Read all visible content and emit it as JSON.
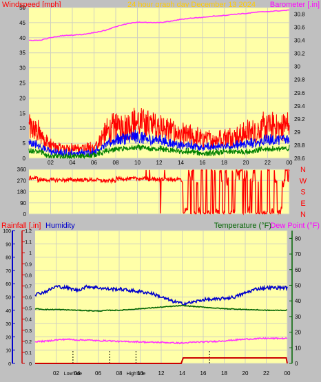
{
  "header": {
    "left_title": "Windspeed [mph]",
    "center_title": "24 hour graph day   December 13 2024",
    "right_title": "Barometer [.in]"
  },
  "colors": {
    "background": "#c0c0c0",
    "plot_bg": "#ffffa8",
    "grid": "#d0d0c0",
    "wind_gust": "#ff0000",
    "wind_avg": "#0000ff",
    "wind_min": "#008000",
    "barometer": "#ff33ff",
    "direction": "#ff0000",
    "rain": "#cc0000",
    "humidity": "#0000cc",
    "temperature": "#006400",
    "dew_point": "#ff33ff",
    "title_red": "#ff0000",
    "title_orange": "#ffcc00",
    "title_magenta": "#ff00ff",
    "axis_text": "#000000"
  },
  "chart_data": [
    {
      "type": "line",
      "name": "wind-barometer",
      "x_ticks": [
        "02",
        "04",
        "06",
        "08",
        "10",
        "12",
        "14",
        "16",
        "18",
        "20",
        "22",
        "00"
      ],
      "wind_axis": [
        0,
        5,
        10,
        15,
        20,
        25,
        30,
        35,
        40,
        45,
        50
      ],
      "baro_axis": [
        "28.6",
        "28.8",
        "29",
        "29.2",
        "29.4",
        "29.6",
        "29.8",
        "30",
        "30.2",
        "30.4",
        "30.6",
        "30.8"
      ],
      "baro_key": [
        [
          0,
          30.4
        ],
        [
          1,
          30.4
        ],
        [
          2,
          30.44
        ],
        [
          3,
          30.47
        ],
        [
          4,
          30.48
        ],
        [
          5,
          30.49
        ],
        [
          6,
          30.52
        ],
        [
          7,
          30.55
        ],
        [
          8,
          30.61
        ],
        [
          9,
          30.65
        ],
        [
          10,
          30.68
        ],
        [
          11,
          30.67
        ],
        [
          12,
          30.67
        ],
        [
          13,
          30.69
        ],
        [
          14,
          30.72
        ],
        [
          15,
          30.74
        ],
        [
          16,
          30.75
        ],
        [
          17,
          30.77
        ],
        [
          18,
          30.78
        ],
        [
          19,
          30.8
        ],
        [
          20,
          30.81
        ],
        [
          21,
          30.83
        ],
        [
          22,
          30.84
        ],
        [
          23,
          30.85
        ],
        [
          24,
          30.86
        ]
      ],
      "wind_gust_key": [
        [
          0,
          10
        ],
        [
          1,
          8
        ],
        [
          2,
          4
        ],
        [
          3,
          3
        ],
        [
          4,
          3
        ],
        [
          5,
          3
        ],
        [
          6,
          3
        ],
        [
          7,
          8
        ],
        [
          8,
          10
        ],
        [
          9,
          11
        ],
        [
          10,
          11
        ],
        [
          11,
          11
        ],
        [
          12,
          10
        ],
        [
          13,
          9
        ],
        [
          14,
          7
        ],
        [
          15,
          7
        ],
        [
          16,
          6
        ],
        [
          17,
          6
        ],
        [
          18,
          7
        ],
        [
          19,
          7
        ],
        [
          20,
          8
        ],
        [
          21,
          9
        ],
        [
          22,
          10
        ],
        [
          23,
          10
        ],
        [
          24,
          11
        ]
      ],
      "wind_avg_key": [
        [
          0,
          5
        ],
        [
          1,
          4
        ],
        [
          2,
          2
        ],
        [
          3,
          1.5
        ],
        [
          4,
          1.5
        ],
        [
          5,
          1.5
        ],
        [
          6,
          2
        ],
        [
          7,
          4
        ],
        [
          8,
          6
        ],
        [
          9,
          6.5
        ],
        [
          10,
          7
        ],
        [
          11,
          6
        ],
        [
          12,
          6
        ],
        [
          13,
          5
        ],
        [
          14,
          4
        ],
        [
          15,
          4
        ],
        [
          16,
          3.5
        ],
        [
          17,
          3.5
        ],
        [
          18,
          4
        ],
        [
          19,
          4
        ],
        [
          20,
          4.5
        ],
        [
          21,
          5
        ],
        [
          22,
          6
        ],
        [
          23,
          6
        ],
        [
          24,
          6.5
        ]
      ],
      "wind_min_key": [
        [
          0,
          2.5
        ],
        [
          1,
          2
        ],
        [
          2,
          0.5
        ],
        [
          3,
          0.5
        ],
        [
          4,
          0.5
        ],
        [
          5,
          0.5
        ],
        [
          6,
          1
        ],
        [
          7,
          2
        ],
        [
          8,
          3
        ],
        [
          9,
          3
        ],
        [
          10,
          3.5
        ],
        [
          11,
          3
        ],
        [
          12,
          3
        ],
        [
          13,
          2.5
        ],
        [
          14,
          2
        ],
        [
          15,
          2
        ],
        [
          16,
          1.5
        ],
        [
          17,
          1.5
        ],
        [
          18,
          2
        ],
        [
          19,
          2
        ],
        [
          20,
          2
        ],
        [
          21,
          2.5
        ],
        [
          22,
          3
        ],
        [
          23,
          3
        ],
        [
          24,
          3
        ]
      ]
    },
    {
      "type": "scatter",
      "name": "wind-direction",
      "y_ticks": [
        0,
        90,
        180,
        270,
        360
      ],
      "compass_labels": [
        "N",
        "W",
        "S",
        "E",
        "N"
      ],
      "segments": [
        [
          0,
          0.8,
          290
        ],
        [
          0.8,
          6.5,
          275
        ],
        [
          6.5,
          8,
          268
        ],
        [
          8,
          11,
          285
        ],
        [
          11,
          14,
          280
        ],
        [
          14,
          16,
          180
        ],
        [
          16,
          18,
          260
        ],
        [
          18,
          20,
          200
        ],
        [
          20,
          24,
          230
        ]
      ]
    },
    {
      "type": "line",
      "name": "rain-humidity-temperature",
      "left_title_rain": "Rainfall [.in]",
      "left_title_humidity": "Humidity",
      "right_title_temp": "Temperature (°F)",
      "right_title_dew": "Dew Point (°F)",
      "humidity_axis": [
        0,
        10,
        20,
        30,
        40,
        50,
        60,
        70,
        80,
        90,
        100
      ],
      "rain_axis": [
        "0",
        "0.1",
        "0.2",
        "0.3",
        "0.4",
        "0.5",
        "0.6",
        "0.7",
        "0.8",
        "0.9",
        "1",
        "1.1",
        "1.2"
      ],
      "temp_axis": [
        0,
        10,
        20,
        30,
        40,
        50,
        60,
        70,
        80
      ],
      "x_ticks": [
        "02",
        "04",
        "06",
        "08",
        "10",
        "12",
        "14",
        "16",
        "18",
        "20",
        "22",
        "00"
      ],
      "tide_labels": [
        {
          "label": "LowTide",
          "hour": 3.6
        },
        {
          "label": "HighTide",
          "hour": 9.6
        }
      ],
      "tide_marks": [
        3.6,
        7.1,
        9.6,
        16.6
      ],
      "humidity_key": [
        [
          0,
          52
        ],
        [
          1,
          54
        ],
        [
          2,
          58
        ],
        [
          3,
          57
        ],
        [
          4,
          55
        ],
        [
          5,
          58
        ],
        [
          6,
          57
        ],
        [
          7,
          56
        ],
        [
          8,
          56
        ],
        [
          9,
          55
        ],
        [
          10,
          54
        ],
        [
          11,
          53
        ],
        [
          12,
          50
        ],
        [
          13,
          47
        ],
        [
          14,
          45
        ],
        [
          15,
          46
        ],
        [
          16,
          48
        ],
        [
          17,
          48
        ],
        [
          18,
          49
        ],
        [
          19,
          50
        ],
        [
          20,
          53
        ],
        [
          21,
          56
        ],
        [
          22,
          57
        ],
        [
          23,
          57
        ],
        [
          24,
          57
        ]
      ],
      "temp_key": [
        [
          0,
          35
        ],
        [
          1,
          34.5
        ],
        [
          2,
          34.5
        ],
        [
          3,
          34.3
        ],
        [
          4,
          34
        ],
        [
          5,
          33.8
        ],
        [
          6,
          33.5
        ],
        [
          7,
          34
        ],
        [
          8,
          34
        ],
        [
          9,
          34.5
        ],
        [
          10,
          35
        ],
        [
          11,
          35.5
        ],
        [
          12,
          36
        ],
        [
          13,
          36.5
        ],
        [
          14,
          37
        ],
        [
          15,
          36.5
        ],
        [
          16,
          36
        ],
        [
          17,
          35.5
        ],
        [
          18,
          35
        ],
        [
          19,
          34.8
        ],
        [
          20,
          34.5
        ],
        [
          21,
          34.3
        ],
        [
          22,
          34
        ],
        [
          23,
          34
        ],
        [
          24,
          34
        ]
      ],
      "dew_key": [
        [
          0,
          14
        ],
        [
          1,
          14.2
        ],
        [
          2,
          15
        ],
        [
          3,
          15.5
        ],
        [
          4,
          15
        ],
        [
          5,
          15
        ],
        [
          6,
          14.5
        ],
        [
          7,
          14.5
        ],
        [
          8,
          14
        ],
        [
          9,
          14
        ],
        [
          10,
          13.8
        ],
        [
          11,
          13.5
        ],
        [
          12,
          13.5
        ],
        [
          13,
          13.2
        ],
        [
          14,
          13
        ],
        [
          15,
          13.5
        ],
        [
          16,
          13.8
        ],
        [
          17,
          14
        ],
        [
          18,
          14.5
        ],
        [
          19,
          15
        ],
        [
          20,
          15.5
        ],
        [
          21,
          15.8
        ],
        [
          22,
          16
        ],
        [
          23,
          16
        ],
        [
          24,
          16
        ]
      ],
      "rain_key": [
        [
          0,
          0
        ],
        [
          13.9,
          0
        ],
        [
          14.1,
          0.05
        ],
        [
          23.9,
          0.05
        ],
        [
          24,
          0
        ]
      ]
    }
  ]
}
